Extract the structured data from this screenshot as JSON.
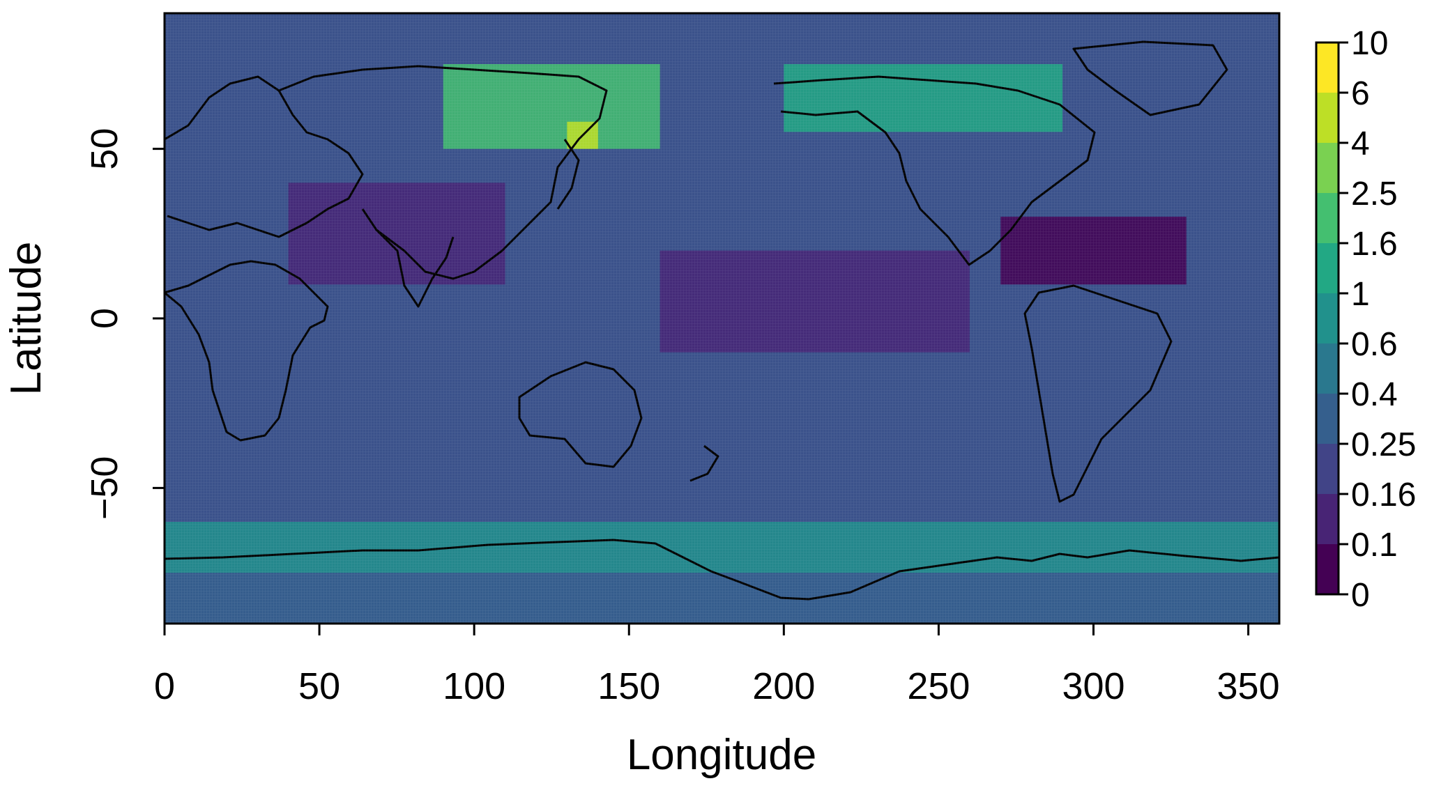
{
  "chart_data": {
    "type": "heatmap",
    "title": "",
    "xlabel": "Longitude",
    "ylabel": "Latitude",
    "xlim": [
      0,
      360
    ],
    "ylim": [
      -90,
      90
    ],
    "x_ticks": [
      "0",
      "50",
      "100",
      "150",
      "200",
      "250",
      "300",
      "350"
    ],
    "x_tick_values": [
      0,
      50,
      100,
      150,
      200,
      250,
      300,
      350
    ],
    "y_ticks": [
      "−50",
      "0",
      "50"
    ],
    "y_tick_values": [
      -50,
      0,
      50
    ],
    "colorbar": {
      "labels": [
        "0",
        "0.1",
        "0.16",
        "0.25",
        "0.4",
        "0.6",
        "1",
        "1.6",
        "2.5",
        "4",
        "6",
        "10"
      ],
      "breaks": [
        0,
        0.1,
        0.16,
        0.25,
        0.4,
        0.6,
        1,
        1.6,
        2.5,
        4,
        6,
        10
      ],
      "colors": [
        "#440154",
        "#482475",
        "#414487",
        "#355f8d",
        "#2a788e",
        "#21918c",
        "#22a884",
        "#44bf70",
        "#7ad151",
        "#bddf26",
        "#fde725"
      ]
    },
    "regions": [
      {
        "lon": [
          90,
          160
        ],
        "lat": [
          50,
          75
        ],
        "value": 1.8
      },
      {
        "lon": [
          130,
          140
        ],
        "lat": [
          50,
          58
        ],
        "value": 5
      },
      {
        "lon": [
          200,
          290
        ],
        "lat": [
          55,
          75
        ],
        "value": 1.5
      },
      {
        "lon": [
          0,
          360
        ],
        "lat": [
          -75,
          -60
        ],
        "value": 0.7
      },
      {
        "lon": [
          160,
          260
        ],
        "lat": [
          -10,
          20
        ],
        "value": 0.12
      },
      {
        "lon": [
          40,
          110
        ],
        "lat": [
          10,
          40
        ],
        "value": 0.12
      },
      {
        "lon": [
          270,
          330
        ],
        "lat": [
          10,
          30
        ],
        "value": 0.09
      },
      {
        "lon": [
          0,
          360
        ],
        "lat": [
          -90,
          -75
        ],
        "value": 0.25
      }
    ]
  }
}
